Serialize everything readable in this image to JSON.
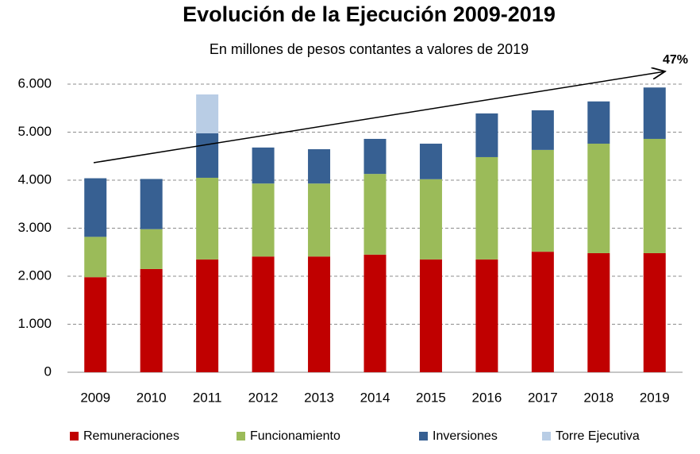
{
  "chart_data": {
    "type": "stacked_bar",
    "title": "Evolución de la Ejecución 2009-2019",
    "subtitle": "En millones de pesos contantes a valores de 2019",
    "annotation": "47%",
    "categories": [
      "2009",
      "2010",
      "2011",
      "2012",
      "2013",
      "2014",
      "2015",
      "2016",
      "2017",
      "2018",
      "2019"
    ],
    "series": [
      {
        "name": "Remuneraciones",
        "color": "#c00000",
        "values": [
          1980,
          2150,
          2350,
          2410,
          2410,
          2450,
          2350,
          2350,
          2510,
          2480,
          2480
        ]
      },
      {
        "name": "Funcionamiento",
        "color": "#9bbb59",
        "values": [
          840,
          830,
          1700,
          1520,
          1520,
          1680,
          1670,
          2130,
          2120,
          2280,
          2380
        ]
      },
      {
        "name": "Inversiones",
        "color": "#376092",
        "values": [
          1220,
          1045,
          925,
          750,
          715,
          730,
          740,
          910,
          825,
          880,
          1070
        ]
      },
      {
        "name": "Torre Ejecutiva",
        "color": "#b9cde5",
        "values": [
          null,
          null,
          810,
          null,
          null,
          null,
          null,
          null,
          null,
          null,
          null
        ]
      }
    ],
    "ylim": [
      0,
      6000
    ],
    "yticks": [
      0,
      {
        "value": 1000,
        "label": "1.000"
      },
      {
        "value": 2000,
        "label": "2.000"
      },
      {
        "value": 3000,
        "label": "3.000"
      },
      {
        "value": 4000,
        "label": "4.000"
      },
      {
        "value": 5000,
        "label": "5.000"
      },
      {
        "value": 6000,
        "label": "6.000"
      }
    ],
    "grid": true,
    "legend": "bottom"
  }
}
